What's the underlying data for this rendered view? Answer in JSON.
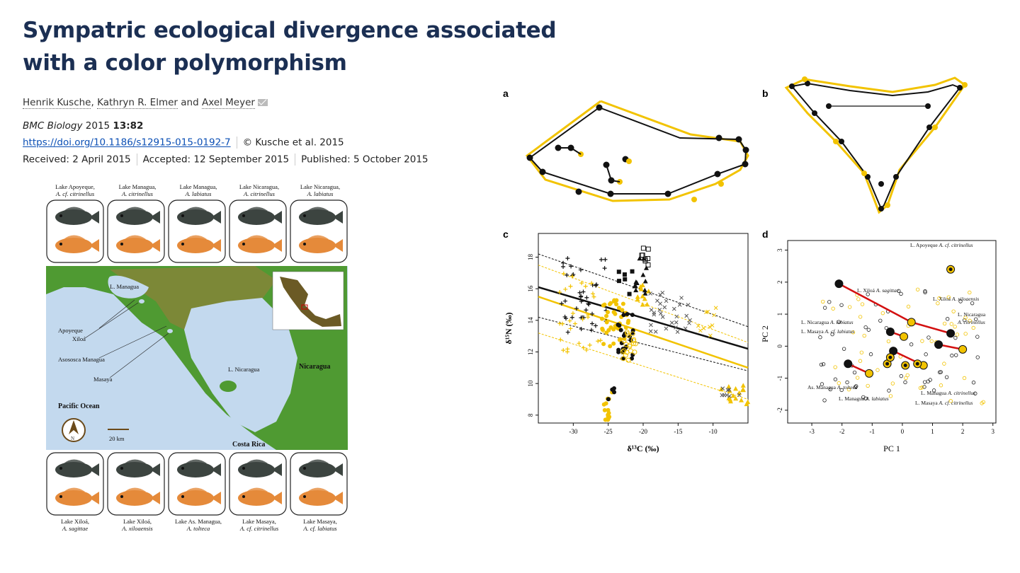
{
  "article": {
    "title": "Sympatric ecological divergence associated with a color polymorphism",
    "authors": [
      "Henrik Kusche",
      "Kathryn R. Elmer",
      "Axel Meyer"
    ],
    "author_sep": ",",
    "author_and": "and",
    "journal": "BMC Biology",
    "year": "2015",
    "volume_article": "13:82",
    "doi": "https://doi.org/10.1186/s12915-015-0192-7",
    "copyright": "© Kusche et al. 2015",
    "received": "Received: 2 April 2015",
    "accepted": "Accepted: 12 September 2015",
    "published": "Published: 5 October 2015"
  },
  "figure_left": {
    "top_labels": [
      {
        "line1": "Lake Apoyeque,",
        "line2": "A. cf. citrinellus"
      },
      {
        "line1": "Lake Managua,",
        "line2": "A. citrinellus"
      },
      {
        "line1": "Lake Managua,",
        "line2": "A. labiatus"
      },
      {
        "line1": "Lake Nicaragua,",
        "line2": "A. citrinellus"
      },
      {
        "line1": "Lake Nicaragua,",
        "line2": "A. labiatus"
      }
    ],
    "bottom_labels": [
      {
        "line1": "Lake Xiloá,",
        "line2": "A. sagittae"
      },
      {
        "line1": "Lake Xiloá,",
        "line2": "A. xiloaensis"
      },
      {
        "line1": "Lake As. Managua,",
        "line2": "A. tolteca"
      },
      {
        "line1": "Lake Masaya,",
        "line2": "A. cf. citrinellus"
      },
      {
        "line1": "Lake Masaya,",
        "line2": "A. cf. labiatus"
      }
    ],
    "map_labels": {
      "l_managua": "L. Managua",
      "apoyeque": "Apoyeque",
      "xiloa": "Xiloá",
      "asososca": "Asososca Managua",
      "masaya": "Masaya",
      "l_nicaragua": "L. Nicaragua",
      "nicaragua": "Nicaragua",
      "pacific": "Pacific Ocean",
      "costa_rica": "Costa Rica",
      "scale": "20 km",
      "north": "N"
    },
    "colors": {
      "land": "#4f9a32",
      "water": "#c3d9ee",
      "mountain": "#a37a3c",
      "dark_fish": "#3c4440",
      "orange_fish": "#e58a3a"
    }
  },
  "figure_right": {
    "panel_labels": [
      "a",
      "b",
      "c",
      "d"
    ],
    "colors": {
      "yellow": "#f2c300",
      "black": "#111111",
      "red": "#d31010"
    },
    "panel_c": {
      "xlabel": "δ¹³C (‰)",
      "ylabel": "δ¹⁵N (‰)",
      "x_ticks": [
        "-30",
        "-25",
        "-20",
        "-15",
        "-10"
      ],
      "y_ticks": [
        "8",
        "10",
        "12",
        "14",
        "16",
        "18"
      ]
    },
    "panel_d": {
      "xlabel": "PC 1",
      "ylabel": "PC 2",
      "x_ticks": [
        "-3",
        "-2",
        "-1",
        "0",
        "1",
        "2",
        "3"
      ],
      "y_ticks": [
        "-2",
        "-1",
        "0",
        "1",
        "2",
        "3"
      ],
      "labels": {
        "apoyeque_1": "L. Apoyeque",
        "apoyeque_2": "A. cf. citrinellus",
        "xiloa_sag_1": "L. Xiloá",
        "xiloa_sag_2": "A. sagittae",
        "xiloa_xil_1": "L. Xiloá",
        "xiloa_xil_2": "A. xiloaensis",
        "nic_cit_1": "L. Nicaragua",
        "nic_cit_2": "A. citrinellus",
        "nic_lab_1": "L. Nicaragua",
        "nic_lab_2": "A. labiatus",
        "mas_lab_1": "L. Masaya",
        "mas_lab_2": "A. cf. labiatus",
        "asm_tol_1": "As. Managua",
        "asm_tol_2": "A. tolteca",
        "man_lab_1": "L. Managua",
        "man_lab_2": "A. labiatus",
        "man_cit_1": "L. Managua",
        "man_cit_2": "A. citrinellus",
        "mas_cit_1": "L. Masaya",
        "mas_cit_2": "A. cf. citrinellus"
      }
    }
  }
}
